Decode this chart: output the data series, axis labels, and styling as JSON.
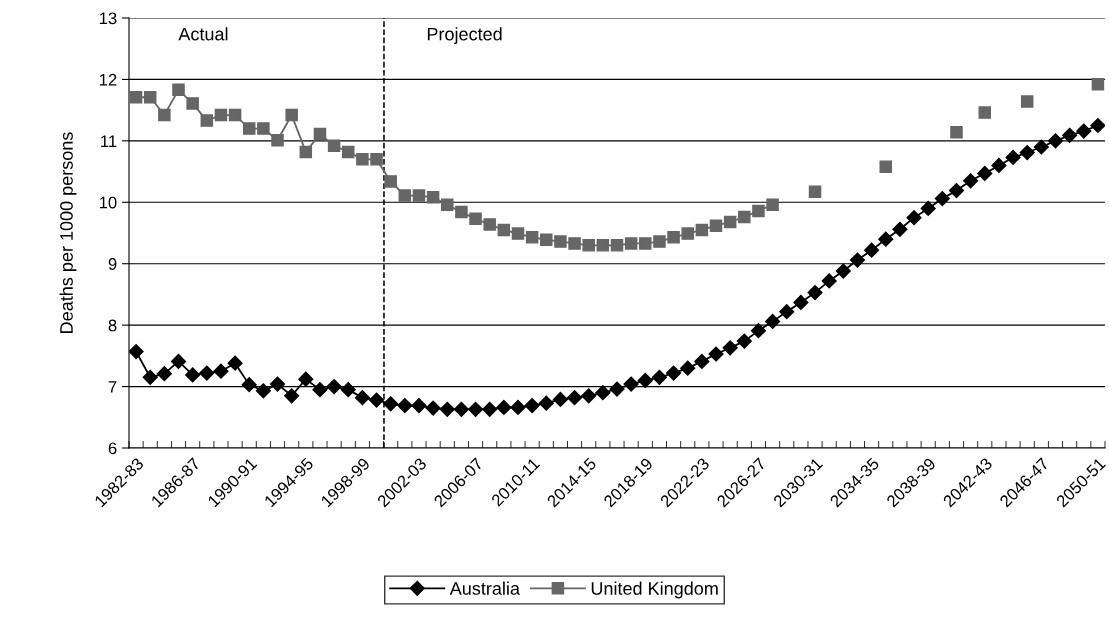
{
  "chart_data": {
    "type": "line",
    "ylabel": "Deaths per 1000 persons",
    "categories": [
      "1982-83",
      null,
      null,
      null,
      "1986-87",
      null,
      null,
      null,
      "1990-91",
      null,
      null,
      null,
      "1994-95",
      null,
      null,
      null,
      "1998-99",
      null,
      null,
      null,
      "2002-03",
      null,
      null,
      null,
      "2006-07",
      null,
      null,
      null,
      "2010-11",
      null,
      null,
      null,
      "2014-15",
      null,
      null,
      null,
      "2018-19",
      null,
      null,
      null,
      "2022-23",
      null,
      null,
      null,
      "2026-27",
      null,
      null,
      null,
      "2030-31",
      null,
      null,
      null,
      "2034-35",
      null,
      null,
      null,
      "2038-39",
      null,
      null,
      null,
      "2042-43",
      null,
      null,
      null,
      "2046-47",
      null,
      null,
      null,
      "2050-51"
    ],
    "series": [
      {
        "name": "Australia",
        "color": "#000000",
        "marker": "diamond",
        "values": [
          7.57,
          7.15,
          7.21,
          7.41,
          7.19,
          7.22,
          7.25,
          7.38,
          7.03,
          6.93,
          7.04,
          6.85,
          7.12,
          6.95,
          7.0,
          6.95,
          6.82,
          6.78,
          6.72,
          6.69,
          6.69,
          6.65,
          6.63,
          6.63,
          6.63,
          6.63,
          6.66,
          6.66,
          6.69,
          6.73,
          6.79,
          6.82,
          6.85,
          6.9,
          6.96,
          7.04,
          7.1,
          7.15,
          7.22,
          7.3,
          7.41,
          7.53,
          7.63,
          7.74,
          7.91,
          8.06,
          8.22,
          8.37,
          8.53,
          8.72,
          8.88,
          9.06,
          9.22,
          9.4,
          9.56,
          9.75,
          9.9,
          10.06,
          10.19,
          10.35,
          10.47,
          10.6,
          10.73,
          10.81,
          10.9,
          11.0,
          11.09,
          11.16,
          11.25
        ]
      },
      {
        "name": "United Kingdom",
        "color": "#666666",
        "marker": "square",
        "values": [
          11.71,
          11.71,
          11.42,
          11.83,
          11.61,
          11.33,
          11.42,
          11.42,
          11.2,
          11.2,
          11.01,
          11.42,
          10.82,
          11.11,
          10.92,
          10.82,
          10.7,
          10.7,
          10.34,
          10.11,
          10.11,
          10.08,
          9.96,
          9.84,
          9.73,
          9.64,
          9.55,
          9.49,
          9.43,
          9.39,
          9.36,
          9.33,
          9.3,
          9.3,
          9.3,
          9.33,
          9.33,
          9.36,
          9.43,
          9.49,
          9.55,
          9.62,
          9.68,
          9.76,
          9.86,
          9.96,
          null,
          null,
          10.17,
          null,
          null,
          null,
          null,
          10.58,
          null,
          null,
          null,
          null,
          11.14,
          null,
          11.46,
          null,
          null,
          11.64,
          null,
          null,
          null,
          null,
          11.92
        ]
      }
    ],
    "ylim": [
      6,
      13
    ],
    "yticks": [
      6,
      7,
      8,
      9,
      10,
      11,
      12,
      13
    ],
    "grid": "y",
    "legend": "bottom",
    "line_style": "solid",
    "annotations": [
      "Actual",
      "Projected"
    ]
  }
}
